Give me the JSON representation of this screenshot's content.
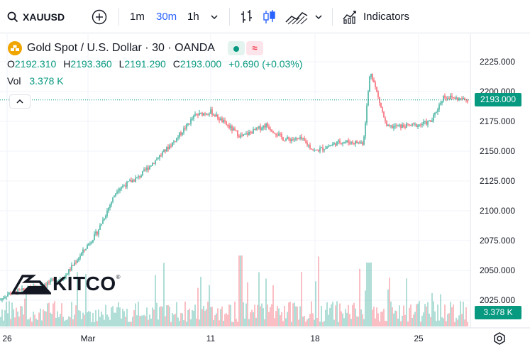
{
  "toolbar": {
    "symbol": "XAUUSD",
    "intervals": [
      "1m",
      "30m",
      "1h"
    ],
    "active_interval": "30m",
    "indicators_label": "Indicators",
    "accent": "#2962ff"
  },
  "legend": {
    "title": "Gold Spot / U.S. Dollar · 30 · OANDA",
    "open_label": "O",
    "open": "2192.310",
    "high_label": "H",
    "high": "2193.360",
    "low_label": "L",
    "low": "2191.290",
    "close_label": "C",
    "close": "2193.000",
    "change": "+0.690 (+0.03%)",
    "vol_label": "Vol",
    "vol": "3.378 K"
  },
  "watermark": {
    "text": "KITCO"
  },
  "price_tag": {
    "value": "2193.000",
    "color": "#089981"
  },
  "volume_tag": {
    "value": "3.378 K",
    "color": "#089981"
  },
  "colors": {
    "up": "#089981",
    "down": "#f23645",
    "grid": "#f0f3fa"
  },
  "chart_data": {
    "type": "candlestick",
    "x_ticks": [
      "26",
      "Mar",
      "11",
      "18",
      "25"
    ],
    "y_ticks": [
      "2225.000",
      "2200.000",
      "2175.000",
      "2150.000",
      "2125.000",
      "2100.000",
      "2075.000",
      "2050.000",
      "2025.000"
    ],
    "ylim": [
      2016,
      2231
    ],
    "current_price": 2193.0,
    "series": [
      {
        "name": "Gold Spot / U.S. Dollar",
        "path_points": [
          [
            "Feb 22",
            2025
          ],
          [
            "Feb 26",
            2030
          ],
          [
            "Feb 28",
            2036
          ],
          [
            "Feb 29",
            2044
          ],
          [
            "Mar 1",
            2082
          ],
          [
            "Mar 4",
            2118
          ],
          [
            "Mar 5",
            2128
          ],
          [
            "Mar 6",
            2140
          ],
          [
            "Mar 7",
            2158
          ],
          [
            "Mar 8",
            2180
          ],
          [
            "Mar 11",
            2183
          ],
          [
            "Mar 12",
            2162
          ],
          [
            "Mar 13",
            2172
          ],
          [
            "Mar 14",
            2160
          ],
          [
            "Mar 15",
            2160
          ],
          [
            "Mar 18",
            2150
          ],
          [
            "Mar 19",
            2158
          ],
          [
            "Mar 20",
            2157
          ],
          [
            "Mar 21",
            2218
          ],
          [
            "Mar 22",
            2170
          ],
          [
            "Mar 25",
            2172
          ],
          [
            "Mar 26",
            2175
          ],
          [
            "Mar 27",
            2196
          ],
          [
            "Mar 28",
            2193
          ]
        ],
        "high": 2225,
        "low": 2023
      }
    ]
  }
}
